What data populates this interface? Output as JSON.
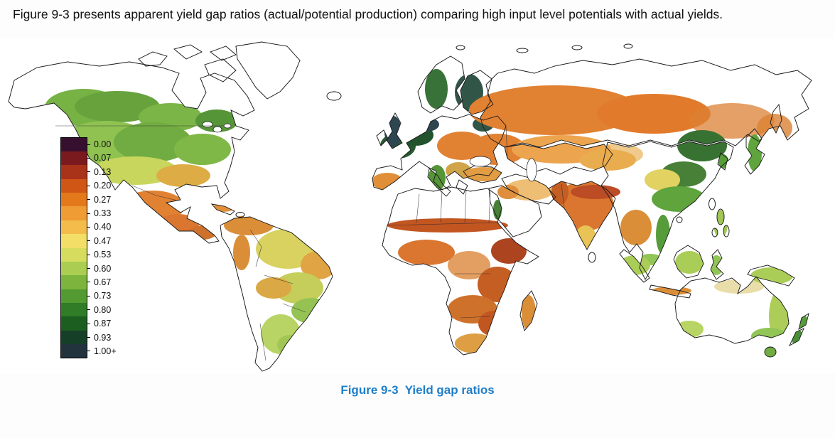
{
  "document": {
    "intro_text": "Figure 9-3 presents apparent yield gap ratios (actual/potential production) comparing high input level potentials with actual yields.",
    "caption": "Figure 9-3  Yield gap ratios"
  },
  "colors": {
    "caption_blue": "#1f7ec8",
    "ocean": "#ffffff",
    "land_outline": "#1a1a1a"
  },
  "legend": {
    "entries": [
      {
        "value": "0.00",
        "color": "#38102f"
      },
      {
        "value": "0.07",
        "color": "#7a1a1e"
      },
      {
        "value": "0.13",
        "color": "#a93318"
      },
      {
        "value": "0.20",
        "color": "#cf5615"
      },
      {
        "value": "0.27",
        "color": "#e4791c"
      },
      {
        "value": "0.33",
        "color": "#ee9c33"
      },
      {
        "value": "0.40",
        "color": "#f3bc4b"
      },
      {
        "value": "0.47",
        "color": "#f3df68"
      },
      {
        "value": "0.53",
        "color": "#d6dd5e"
      },
      {
        "value": "0.60",
        "color": "#abce52"
      },
      {
        "value": "0.67",
        "color": "#7cb43d"
      },
      {
        "value": "0.73",
        "color": "#529a31"
      },
      {
        "value": "0.80",
        "color": "#307c27"
      },
      {
        "value": "0.87",
        "color": "#1c5e20"
      },
      {
        "value": "0.93",
        "color": "#163f28"
      },
      {
        "value": "1.00+",
        "color": "#22333d"
      }
    ]
  },
  "map": {
    "type": "world-choropleth",
    "measure": "apparent yield gap ratio (actual/potential production), high input level potentials vs actual yields",
    "regions_read_from_map": [
      {
        "region": "Southern Canada",
        "approx_ratio": "0.60-0.87 (green)"
      },
      {
        "region": "USA (plains and east)",
        "approx_ratio": "0.47-0.73 (yellow-green to green)"
      },
      {
        "region": "Mexico and Central America",
        "approx_ratio": "0.20-0.33 (orange)"
      },
      {
        "region": "Brazil and tropical S. America",
        "approx_ratio": "0.27-0.53 (orange to yellow)"
      },
      {
        "region": "Argentina (Pampas)",
        "approx_ratio": "0.53-0.67 (light green)"
      },
      {
        "region": "Western Europe",
        "approx_ratio": "0.87-1.00+ (dark green / dark slate)"
      },
      {
        "region": "Eastern Europe and Russia",
        "approx_ratio": "0.20-0.33 (orange)"
      },
      {
        "region": "Sahara / Arabia interior",
        "approx_ratio": "no data (white)"
      },
      {
        "region": "Sahel and Sub-Saharan Africa",
        "approx_ratio": "0.07-0.27 (dark red to orange)"
      },
      {
        "region": "India (Ganges plain)",
        "approx_ratio": "0.13-0.33 (red-orange)"
      },
      {
        "region": "Eastern China",
        "approx_ratio": "0.47-0.93 (yellow to dark green)"
      },
      {
        "region": "Southeast Asia and Indonesia",
        "approx_ratio": "0.27-0.67 (orange to green)"
      },
      {
        "region": "Australia (east and southwest)",
        "approx_ratio": "0.53-0.67 (light green)"
      },
      {
        "region": "New Zealand",
        "approx_ratio": "0.67-0.80 (green)"
      }
    ]
  }
}
